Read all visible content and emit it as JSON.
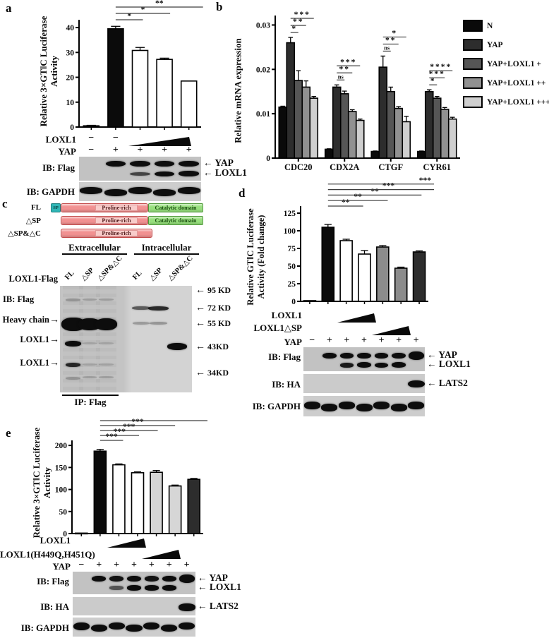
{
  "colors": {
    "band": "#0d0d0d",
    "blot_bg": "#c6c6c6",
    "sp_fill": "#2fb5b5",
    "bar_fill": "#f19191",
    "bar_border": "#c34a4a",
    "inner_fill": "#f8ccca",
    "cat_fill": "#97df7d",
    "cat_border": "#4f9a3a"
  },
  "chart_data": [
    {
      "id": "a",
      "type": "bar",
      "ylabel_line1": "Relative 3×GT‖C Luciferase",
      "ylabel_line2": "Activity",
      "ylim": [
        0,
        42
      ],
      "yticks": [
        0,
        10,
        20,
        30,
        40
      ],
      "values": [
        0.5,
        39.5,
        30.8,
        27.2,
        18.5
      ],
      "errors": [
        0.2,
        1.0,
        1.2,
        0.5,
        0
      ],
      "fills": [
        "#0b0b0b",
        "#0b0b0b",
        "#ffffff",
        "#ffffff",
        "#ffffff"
      ],
      "sig": [
        {
          "a": 1,
          "b": 2,
          "label": "*",
          "level": 0,
          "ext": 4
        },
        {
          "a": 1,
          "b": 3,
          "label": "*",
          "level": 1,
          "ext": 8
        },
        {
          "a": 1,
          "b": 4,
          "label": "**",
          "level": 2,
          "ext": 20
        }
      ]
    },
    {
      "id": "b",
      "type": "grouped_bar",
      "ylabel": "Relative mRNA expression",
      "ylim": [
        0,
        0.0315
      ],
      "yticks": [
        0,
        0.01,
        0.02,
        0.03
      ],
      "categories": [
        "CDC20",
        "CDX2A",
        "CTGF",
        "CYR61"
      ],
      "series": [
        {
          "name": "N",
          "fill": "#0a0a0a",
          "values": [
            0.0115,
            0.002,
            0.0015,
            0.0015
          ],
          "errors": [
            0.0002,
            0.0001,
            0.0001,
            0.0001
          ]
        },
        {
          "name": "YAP",
          "fill": "#2d2d2d",
          "values": [
            0.026,
            0.016,
            0.0205,
            0.015
          ],
          "errors": [
            0.0012,
            0.0005,
            0.0025,
            0.0004
          ]
        },
        {
          "name": "YAP+LOXL1 +",
          "fill": "#565656",
          "values": [
            0.0175,
            0.0145,
            0.015,
            0.0135
          ],
          "errors": [
            0.0022,
            0.0006,
            0.001,
            0.0004
          ]
        },
        {
          "name": "YAP+LOXL1 ++",
          "fill": "#919191",
          "values": [
            0.016,
            0.0105,
            0.0112,
            0.011
          ],
          "errors": [
            0.0014,
            0.0004,
            0.0004,
            0.0004
          ]
        },
        {
          "name": "YAP+LOXL1 +++",
          "fill": "#cfcfcf",
          "values": [
            0.0135,
            0.0085,
            0.0082,
            0.0088
          ],
          "errors": [
            0.0004,
            0.0003,
            0.0012,
            0.0004
          ]
        }
      ],
      "sig": [
        {
          "cat": 0,
          "a": 1,
          "b": 2,
          "label": "*",
          "level": 0
        },
        {
          "cat": 0,
          "a": 1,
          "b": 3,
          "label": "**",
          "level": 1
        },
        {
          "cat": 0,
          "a": 1,
          "b": 4,
          "label": "***",
          "level": 2
        },
        {
          "cat": 1,
          "a": 1,
          "b": 2,
          "label": "ns",
          "level": 0
        },
        {
          "cat": 1,
          "a": 1,
          "b": 3,
          "label": "**",
          "level": 1
        },
        {
          "cat": 1,
          "a": 1,
          "b": 4,
          "label": "***",
          "level": 2
        },
        {
          "cat": 2,
          "a": 1,
          "b": 2,
          "label": "ns",
          "level": 0
        },
        {
          "cat": 2,
          "a": 1,
          "b": 3,
          "label": "**",
          "level": 1
        },
        {
          "cat": 2,
          "a": 1,
          "b": 4,
          "label": "*",
          "level": 2
        },
        {
          "cat": 3,
          "a": 1,
          "b": 2,
          "label": "*",
          "level": 0
        },
        {
          "cat": 3,
          "a": 1,
          "b": 3,
          "label": "***",
          "level": 1
        },
        {
          "cat": 3,
          "a": 1,
          "b": 4,
          "label": "****",
          "level": 2
        }
      ],
      "legend_position": "right"
    },
    {
      "id": "d",
      "type": "bar",
      "ylabel_line1": "Relative GT‖C Luciferase",
      "ylabel_line2": "Activity (Fold change)",
      "ylim": [
        0,
        131
      ],
      "yticks": [
        0,
        25,
        50,
        75,
        100,
        125
      ],
      "values": [
        1,
        105,
        86,
        67,
        77,
        47,
        70
      ],
      "errors": [
        0,
        4,
        2,
        5,
        2,
        1.5,
        1.5
      ],
      "fills": [
        "#0b0b0b",
        "#0b0b0b",
        "#ffffff",
        "#ffffff",
        "#8c8c8c",
        "#8c8c8c",
        "#2d2d2d"
      ],
      "sig": [
        {
          "a": 1,
          "b": 2,
          "label": "**",
          "level": 0,
          "ext": 24
        },
        {
          "a": 1,
          "b": 3,
          "label": "**",
          "level": 1,
          "ext": 33
        },
        {
          "a": 1,
          "b": 4,
          "label": "**",
          "level": 2,
          "ext": 55
        },
        {
          "a": 1,
          "b": 5,
          "label": "***",
          "level": 3,
          "ext": 68
        },
        {
          "a": 1,
          "b": 6,
          "label": "***",
          "level": 4,
          "ext": 146
        }
      ]
    },
    {
      "id": "e",
      "type": "bar",
      "ylabel_line1": "Relative 3×GT‖C Luciferase",
      "ylabel_line2": "Activity",
      "ylim": [
        0,
        205
      ],
      "yticks": [
        0,
        50,
        100,
        150,
        200
      ],
      "values": [
        1,
        187,
        156,
        138,
        139,
        108,
        123
      ],
      "errors": [
        0,
        4,
        2,
        2,
        4,
        2,
        2
      ],
      "fills": [
        "#0b0b0b",
        "#0b0b0b",
        "#ffffff",
        "#ffffff",
        "#d6d6d6",
        "#d6d6d6",
        "#2d2d2d"
      ],
      "sig": [
        {
          "a": 1,
          "b": 2,
          "label": "***",
          "level": 0,
          "ext": 6
        },
        {
          "a": 1,
          "b": 3,
          "label": "***",
          "level": 1,
          "ext": 2
        },
        {
          "a": 1,
          "b": 4,
          "label": "***",
          "level": 2,
          "ext": 2
        },
        {
          "a": 1,
          "b": 5,
          "label": "***",
          "level": 3,
          "ext": 0
        },
        {
          "a": 1,
          "b": 6,
          "label": "***",
          "level": 4,
          "ext": 209
        }
      ]
    }
  ],
  "panels": {
    "a": {
      "letter": "a",
      "rows": {
        "loxl1": "LOXL1",
        "loxl1_marks": [
          "−",
          "−",
          "",
          "",
          ""
        ],
        "yap": "YAP",
        "yap_marks": [
          "−",
          "+",
          "+",
          "+",
          "+"
        ]
      },
      "blots": [
        {
          "label": "IB: Flag",
          "lanes": 5,
          "rows": [
            {
              "y": 30,
              "h": 8,
              "wf": 1.15,
              "bands": [
                0,
                1,
                1,
                1,
                1
              ],
              "arrow": "YAP"
            },
            {
              "y": 72,
              "h": 7,
              "wf": 1.15,
              "bands": [
                0,
                0,
                0.55,
                1.1,
                1.2
              ],
              "arrow": "LOXL1"
            }
          ]
        },
        {
          "label": "IB: GAPDH",
          "lanes": 5,
          "rows": [
            {
              "y": 50,
              "h": 9,
              "wf": 1.3,
              "wavy": true,
              "bands": [
                1,
                1,
                1,
                1,
                1
              ]
            }
          ]
        }
      ]
    },
    "b": {
      "letter": "b"
    },
    "c": {
      "letter": "c",
      "constructs": [
        {
          "label": "FL"
        },
        {
          "label": "△SP"
        },
        {
          "label": "△SP&△C"
        }
      ],
      "domains": {
        "sp": "SP",
        "proline": "Proline-rich",
        "catalytic": "Catalytic domain"
      },
      "headers": {
        "extracellular": "Extracellular",
        "intracellular": "Intracellular"
      },
      "lane_labels": [
        "FL",
        "△SP",
        "△SP&△C",
        "FL",
        "△SP",
        "△SP&△C"
      ],
      "row_label": "LOXL1-Flag",
      "ib_label": "IB: Flag",
      "left_labels": [
        "Heavy chain",
        "LOXL1",
        "LOXL1"
      ],
      "kd_markers": [
        "95 KD",
        "72 KD",
        "55 KD",
        "43KD",
        "34KD"
      ],
      "ip_label": "IP: Flag",
      "blot": {
        "lanes": 6,
        "centers": [
          0.1,
          0.225,
          0.35,
          0.615,
          0.745,
          0.885
        ],
        "smear_lanes": [
          0,
          1,
          2
        ],
        "bands": [
          {
            "lane": 0,
            "y": 36,
            "h": 19,
            "w": 1.5,
            "o": 1
          },
          {
            "lane": 1,
            "y": 36,
            "h": 17,
            "w": 1.4,
            "o": 1
          },
          {
            "lane": 2,
            "y": 36,
            "h": 17,
            "w": 1.35,
            "o": 1
          },
          {
            "lane": 3,
            "y": 35,
            "h": 4,
            "w": 1.1,
            "o": 0.28
          },
          {
            "lane": 4,
            "y": 35,
            "h": 4,
            "w": 1.1,
            "o": 0.3
          },
          {
            "lane": 3,
            "y": 21,
            "h": 5,
            "w": 1.15,
            "o": 0.6
          },
          {
            "lane": 4,
            "y": 21,
            "h": 6,
            "w": 1.3,
            "o": 0.85
          },
          {
            "lane": 0,
            "y": 54,
            "h": 8,
            "w": 1.05,
            "o": 1
          },
          {
            "lane": 5,
            "y": 57,
            "h": 10,
            "w": 1.25,
            "o": 1
          },
          {
            "lane": 0,
            "y": 74,
            "h": 6,
            "w": 0.95,
            "o": 0.85
          },
          {
            "lane": 0,
            "y": 13,
            "h": 4,
            "w": 0.95,
            "o": 0.25
          },
          {
            "lane": 1,
            "y": 13,
            "h": 3,
            "w": 0.9,
            "o": 0.2
          },
          {
            "lane": 2,
            "y": 13,
            "h": 3,
            "w": 0.9,
            "o": 0.2
          },
          {
            "lane": 1,
            "y": 54,
            "h": 3,
            "w": 0.9,
            "o": 0.15
          },
          {
            "lane": 2,
            "y": 54,
            "h": 3,
            "w": 0.9,
            "o": 0.15
          },
          {
            "lane": 1,
            "y": 74,
            "h": 3,
            "w": 0.9,
            "o": 0.15
          },
          {
            "lane": 2,
            "y": 74,
            "h": 3,
            "w": 0.9,
            "o": 0.15
          },
          {
            "lane": 0,
            "y": 87,
            "h": 4,
            "w": 0.95,
            "o": 0.25
          },
          {
            "lane": 1,
            "y": 86,
            "h": 3,
            "w": 0.9,
            "o": 0.2
          },
          {
            "lane": 2,
            "y": 86,
            "h": 3,
            "w": 0.9,
            "o": 0.2
          }
        ]
      }
    },
    "d": {
      "letter": "d",
      "rows": {
        "loxl1": "LOXL1",
        "loxl1_dsp": "LOXL1△SP",
        "yap": "YAP",
        "yap_marks": [
          "−",
          "+",
          "+",
          "+",
          "+",
          "+",
          "+"
        ]
      },
      "blots": [
        {
          "label": "IB: Flag",
          "lanes": 7,
          "rows": [
            {
              "y": 35,
              "h": 8,
              "wf": 1.1,
              "bands": [
                0,
                1,
                1,
                1.1,
                1,
                1.1,
                1.8
              ],
              "arrow": "YAP"
            },
            {
              "y": 74,
              "h": 7,
              "wf": 1.1,
              "bands": [
                0,
                0,
                0.9,
                1.2,
                1,
                1.2,
                0
              ],
              "arrow": "LOXL1"
            }
          ]
        },
        {
          "label": "IB: HA",
          "lanes": 7,
          "rows": [
            {
              "y": 52,
              "h": 8,
              "wf": 1.2,
              "bands": [
                0,
                0,
                0,
                0,
                0,
                0,
                1.5
              ],
              "arrow": "LATS2"
            }
          ]
        },
        {
          "label": "IB: GAPDH",
          "lanes": 7,
          "rows": [
            {
              "y": 52,
              "h": 10,
              "wf": 1.3,
              "wavy": true,
              "bands": [
                1,
                1,
                1,
                1,
                1,
                1,
                1
              ]
            }
          ]
        }
      ]
    },
    "e": {
      "letter": "e",
      "rows": {
        "loxl1": "LOXL1",
        "mutant": "LOXL1(H449Q,H451Q)",
        "yap": "YAP",
        "yap_marks": [
          "−",
          "+",
          "+",
          "+",
          "+",
          "+",
          "+"
        ]
      },
      "blots": [
        {
          "label": "IB: Flag",
          "lanes": 7,
          "rows": [
            {
              "y": 32,
              "h": 8,
              "wf": 1.1,
              "bands": [
                0,
                1,
                0.95,
                1.05,
                0.95,
                1,
                1.8
              ],
              "arrow": "YAP"
            },
            {
              "y": 72,
              "h": 7,
              "wf": 1.1,
              "bands": [
                0,
                0,
                0.45,
                1.1,
                1,
                1.1,
                0
              ],
              "arrow": "LOXL1"
            }
          ]
        },
        {
          "label": "IB: HA",
          "lanes": 7,
          "rows": [
            {
              "y": 55,
              "h": 8,
              "wf": 1.2,
              "bands": [
                0,
                0,
                0,
                0,
                0,
                0,
                1.5
              ],
              "arrow": "LATS2"
            }
          ]
        },
        {
          "label": "IB: GAPDH",
          "lanes": 7,
          "rows": [
            {
              "y": 50,
              "h": 10,
              "wf": 1.3,
              "wavy": true,
              "bands": [
                1.1,
                1,
                1,
                1,
                1,
                1,
                1
              ]
            }
          ]
        }
      ]
    }
  }
}
